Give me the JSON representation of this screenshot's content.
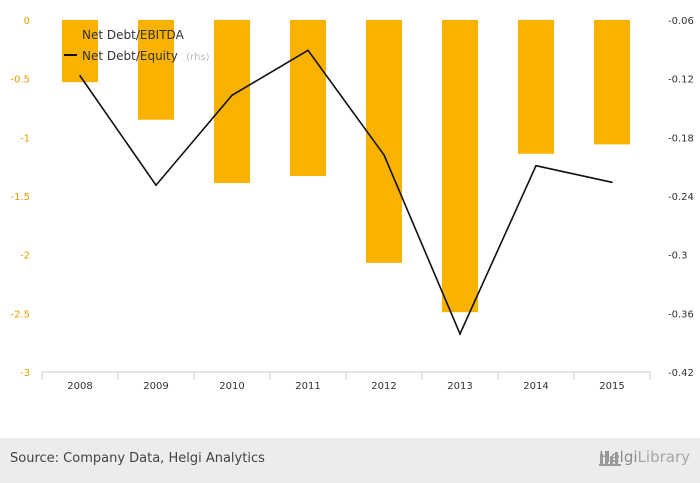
{
  "chart_data": {
    "type": "bar+line",
    "categories": [
      "2008",
      "2009",
      "2010",
      "2011",
      "2012",
      "2013",
      "2014",
      "2015"
    ],
    "series": [
      {
        "name": "Net Debt/EBITDA",
        "type": "bar",
        "axis": "left",
        "color": "#f9b200",
        "values": [
          -0.53,
          -0.85,
          -1.39,
          -1.33,
          -2.07,
          -2.49,
          -1.14,
          -1.06
        ]
      },
      {
        "name": "Net Debt/Equity",
        "name_suffix": "(rhs)",
        "type": "line",
        "axis": "right",
        "color": "#111111",
        "values": [
          -0.117,
          -0.229,
          -0.137,
          -0.091,
          -0.198,
          -0.381,
          -0.209,
          -0.226
        ]
      }
    ],
    "yaxis_left": {
      "min": -3,
      "max": 0,
      "ticks": [
        "0",
        "-0.5",
        "-1",
        "-1.5",
        "-2",
        "-2.5",
        "-3"
      ]
    },
    "yaxis_right": {
      "min": -0.42,
      "max": -0.06,
      "ticks": [
        "-0.06",
        "-0.12",
        "-0.18",
        "-0.24",
        "-0.3",
        "-0.36",
        "-0.42"
      ]
    },
    "legend_position": "top-left",
    "grid": false
  },
  "footer": {
    "source": "Source: Company Data, Helgi Analytics",
    "brand_part1": "Helgi",
    "brand_part2": "Library"
  }
}
